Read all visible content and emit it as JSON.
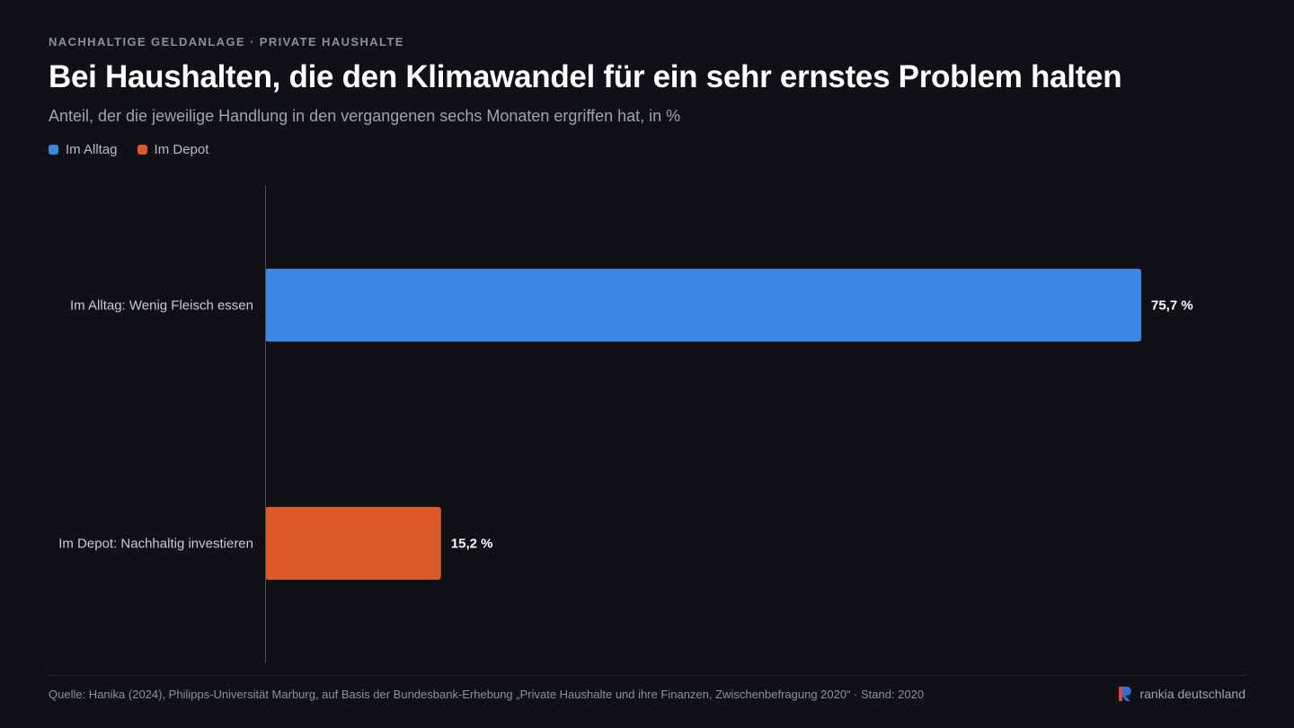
{
  "header": {
    "kicker": "NACHHALTIGE GELDANLAGE · PRIVATE HAUSHALTE",
    "title": "Bei Haushalten, die den Klimawandel für ein sehr ernstes Problem halten",
    "subtitle": "Anteil, der die jeweilige Handlung in den vergangenen sechs Monaten ergriffen hat, in %"
  },
  "legend": [
    {
      "label": "Im Alltag",
      "color": "#3a88e4"
    },
    {
      "label": "Im Depot",
      "color": "#dc5a28"
    }
  ],
  "chart_data": {
    "type": "bar",
    "orientation": "horizontal",
    "title": "Bei Haushalten, die den Klimawandel für ein sehr ernstes Problem halten",
    "subtitle": "Anteil, der die jeweilige Handlung in den vergangenen sechs Monaten ergriffen hat, in %",
    "categories": [
      "Im Alltag: Wenig Fleisch essen",
      "Im Depot: Nachhaltig investieren"
    ],
    "values": [
      75.7,
      15.2
    ],
    "value_labels": [
      "75,7 %",
      "15,2 %"
    ],
    "colors": [
      "#3a88e4",
      "#dc5a28"
    ],
    "series": [
      {
        "name": "Im Alltag",
        "category": "Im Alltag: Wenig Fleisch essen",
        "value": 75.7,
        "color": "#3a88e4"
      },
      {
        "name": "Im Depot",
        "category": "Im Depot: Nachhaltig investieren",
        "value": 15.2,
        "color": "#dc5a28"
      }
    ],
    "xlim": [
      0,
      100
    ],
    "grid": false,
    "legend_position": "top-left"
  },
  "footer": {
    "source": "Quelle: Hanika (2024), Philipps-Universität Marburg, auf Basis der Bundesbank-Erhebung „Private Haushalte und ihre Finanzen, Zwischenbefragung 2020“ · Stand: 2020",
    "brand": "rankia deutschland",
    "brand_colors": {
      "left": "#e0453a",
      "right": "#2f6fd6"
    }
  }
}
